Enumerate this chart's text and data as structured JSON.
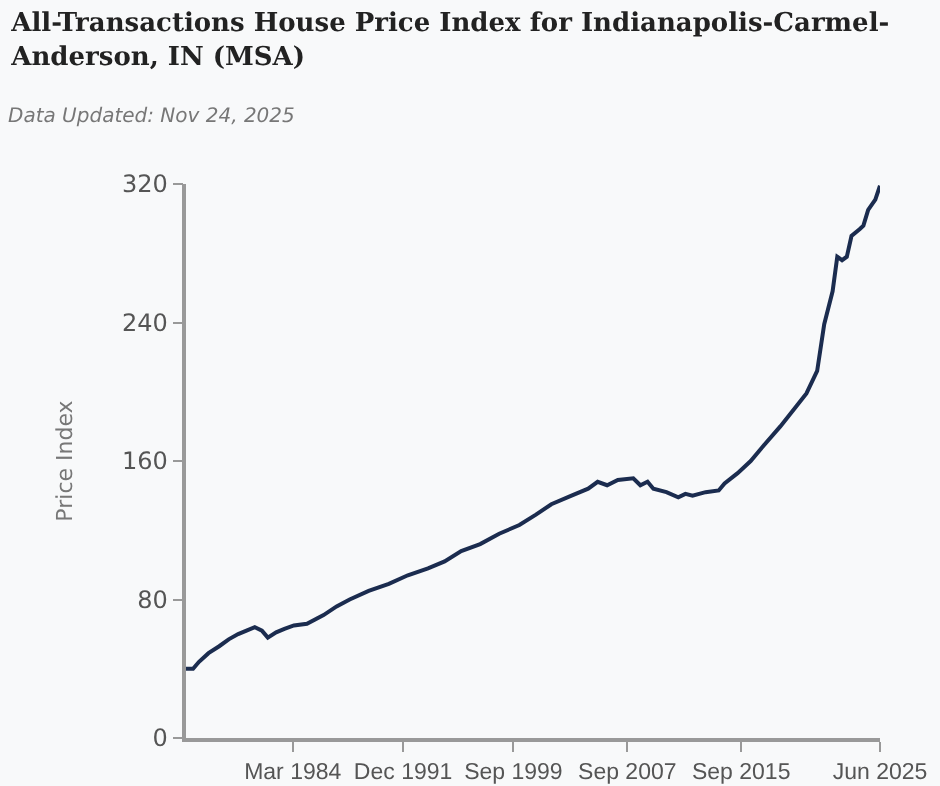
{
  "chart_data": {
    "type": "line",
    "title": "All-Transactions House Price Index for Indianapolis-Carmel-Anderson, IN (MSA)",
    "subtitle": "Data Updated: Nov 24, 2025",
    "ylabel": "Price Index",
    "x": [
      "1976-09",
      "1977-03",
      "1977-08",
      "1978-04",
      "1979-01",
      "1979-09",
      "1980-05",
      "1980-12",
      "1981-07",
      "1982-01",
      "1982-06",
      "1983-01",
      "1983-08",
      "1984-04",
      "1985-03",
      "1986-05",
      "1987-04",
      "1988-03",
      "1989-07",
      "1990-12",
      "1992-04",
      "1993-09",
      "1994-11",
      "1996-01",
      "1997-05",
      "1998-09",
      "2000-02",
      "2001-04",
      "2002-05",
      "2003-10",
      "2004-12",
      "2005-08",
      "2006-04",
      "2007-01",
      "2008-02",
      "2008-08",
      "2009-02",
      "2009-07",
      "2010-06",
      "2011-04",
      "2011-10",
      "2012-04",
      "2013-03",
      "2014-02",
      "2014-07",
      "2015-06",
      "2016-05",
      "2017-04",
      "2018-06",
      "2019-08",
      "2020-04",
      "2021-01",
      "2021-07",
      "2022-02",
      "2022-06",
      "2022-10",
      "2023-02",
      "2023-06",
      "2024-01",
      "2024-04",
      "2024-08",
      "2025-02",
      "2025-06"
    ],
    "series": [
      {
        "color": "#1b2c4f",
        "values": [
          40,
          40,
          44,
          49,
          53,
          57,
          60,
          62,
          64,
          62,
          58,
          61,
          63,
          65,
          66,
          71,
          76,
          80,
          85,
          89,
          94,
          98,
          102,
          108,
          112,
          118,
          123,
          129,
          135,
          140,
          144,
          148,
          146,
          149,
          150,
          146,
          148,
          144,
          142,
          139,
          141,
          140,
          142,
          143,
          147,
          153,
          160,
          169,
          180,
          192,
          199,
          212,
          239,
          258,
          278,
          276,
          278,
          290,
          294,
          296,
          305,
          311,
          319
        ]
      }
    ],
    "xlim": [
      "1976-09",
      "2025-06"
    ],
    "ylim": [
      0,
      320
    ],
    "yticks": [
      0,
      80,
      160,
      240,
      320
    ],
    "xticks": [
      {
        "value": "1984-03",
        "label": "Mar 1984"
      },
      {
        "value": "1991-12",
        "label": "Dec 1991"
      },
      {
        "value": "1999-09",
        "label": "Sep 1999"
      },
      {
        "value": "2007-09",
        "label": "Sep 2007"
      },
      {
        "value": "2015-09",
        "label": "Sep 2015"
      },
      {
        "value": "2025-06",
        "label": "Jun 2025"
      }
    ],
    "grid": false,
    "marker": "none",
    "line_style": "solid"
  }
}
